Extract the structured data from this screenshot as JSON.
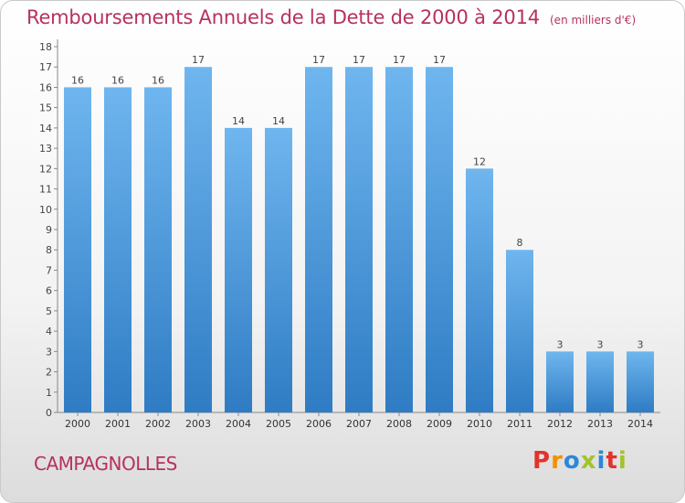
{
  "header": {
    "title": "Remboursements Annuels de la Dette de 2000 à 2014",
    "subtitle": "(en milliers d'€)"
  },
  "footer": {
    "commune": "CAMPAGNOLLES",
    "logo_text": "Proxiti"
  },
  "colors": {
    "bar_top": "#6fb6ef",
    "bar_bottom": "#2f7cc4",
    "title": "#b7315e",
    "logo_letters": [
      "#e3332b",
      "#f29100",
      "#2b88d8",
      "#a3c32b",
      "#2b88d8",
      "#e3332b",
      "#a3c32b"
    ]
  },
  "chart_data": {
    "type": "bar",
    "categories": [
      "2000",
      "2001",
      "2002",
      "2003",
      "2004",
      "2005",
      "2006",
      "2007",
      "2008",
      "2009",
      "2010",
      "2011",
      "2012",
      "2013",
      "2014"
    ],
    "values": [
      16,
      16,
      16,
      17,
      14,
      14,
      17,
      17,
      17,
      17,
      12,
      8,
      3,
      3,
      3
    ],
    "ylim": [
      0,
      18
    ],
    "yticks": [
      0,
      1,
      2,
      3,
      4,
      5,
      6,
      7,
      8,
      9,
      10,
      11,
      12,
      13,
      14,
      15,
      16,
      17,
      18
    ],
    "grid": false,
    "data_labels": true
  }
}
